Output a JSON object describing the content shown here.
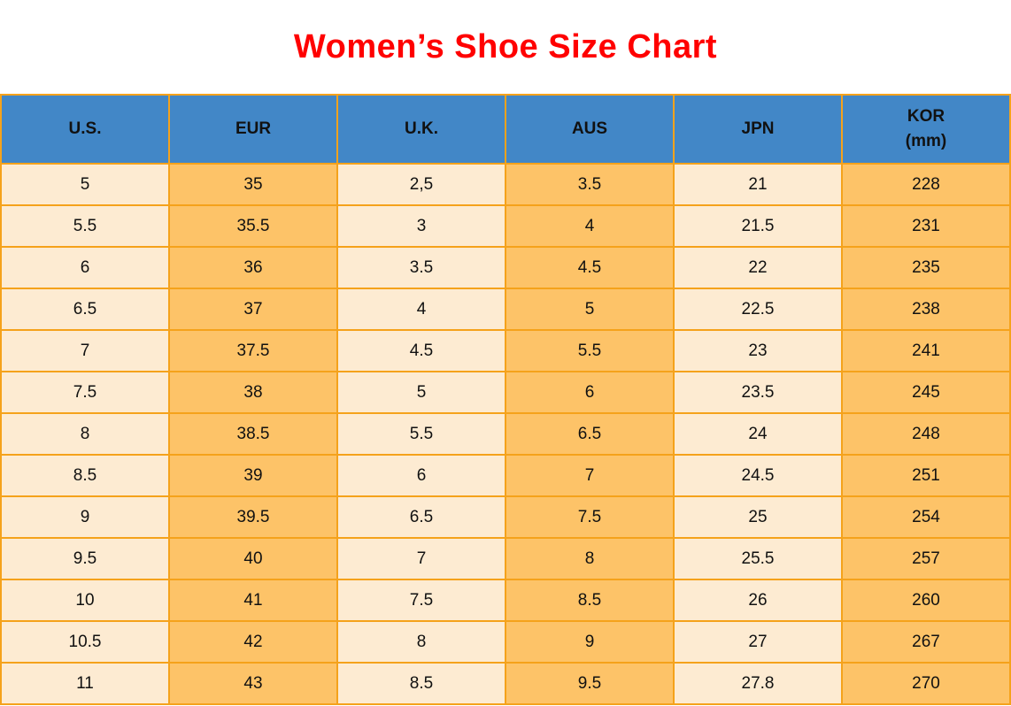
{
  "title": "Women’s Shoe Size Chart",
  "colors": {
    "title_red": "#FF0000",
    "header_blue": "#4287C7",
    "cell_cream": "#FDEBD2",
    "cell_orange": "#FDC368",
    "border_orange": "#F5A21B",
    "text_black": "#111111"
  },
  "table": {
    "headers": [
      {
        "line1": "U.S.",
        "line2": ""
      },
      {
        "line1": "EUR",
        "line2": ""
      },
      {
        "line1": "U.K.",
        "line2": ""
      },
      {
        "line1": "AUS",
        "line2": ""
      },
      {
        "line1": "JPN",
        "line2": ""
      },
      {
        "line1": "KOR",
        "line2": "(mm)"
      }
    ]
  },
  "chart_data": {
    "type": "table",
    "title": "Women’s Shoe Size Chart",
    "columns": [
      "U.S.",
      "EUR",
      "U.K.",
      "AUS",
      "JPN",
      "KOR (mm)"
    ],
    "rows": [
      [
        "5",
        "35",
        "2,5",
        "3.5",
        "21",
        "228"
      ],
      [
        "5.5",
        "35.5",
        "3",
        "4",
        "21.5",
        "231"
      ],
      [
        "6",
        "36",
        "3.5",
        "4.5",
        "22",
        "235"
      ],
      [
        "6.5",
        "37",
        "4",
        "5",
        "22.5",
        "238"
      ],
      [
        "7",
        "37.5",
        "4.5",
        "5.5",
        "23",
        "241"
      ],
      [
        "7.5",
        "38",
        "5",
        "6",
        "23.5",
        "245"
      ],
      [
        "8",
        "38.5",
        "5.5",
        "6.5",
        "24",
        "248"
      ],
      [
        "8.5",
        "39",
        "6",
        "7",
        "24.5",
        "251"
      ],
      [
        "9",
        "39.5",
        "6.5",
        "7.5",
        "25",
        "254"
      ],
      [
        "9.5",
        "40",
        "7",
        "8",
        "25.5",
        "257"
      ],
      [
        "10",
        "41",
        "7.5",
        "8.5",
        "26",
        "260"
      ],
      [
        "10.5",
        "42",
        "8",
        "9",
        "27",
        "267"
      ],
      [
        "11",
        "43",
        "8.5",
        "9.5",
        "27.8",
        "270"
      ]
    ]
  }
}
